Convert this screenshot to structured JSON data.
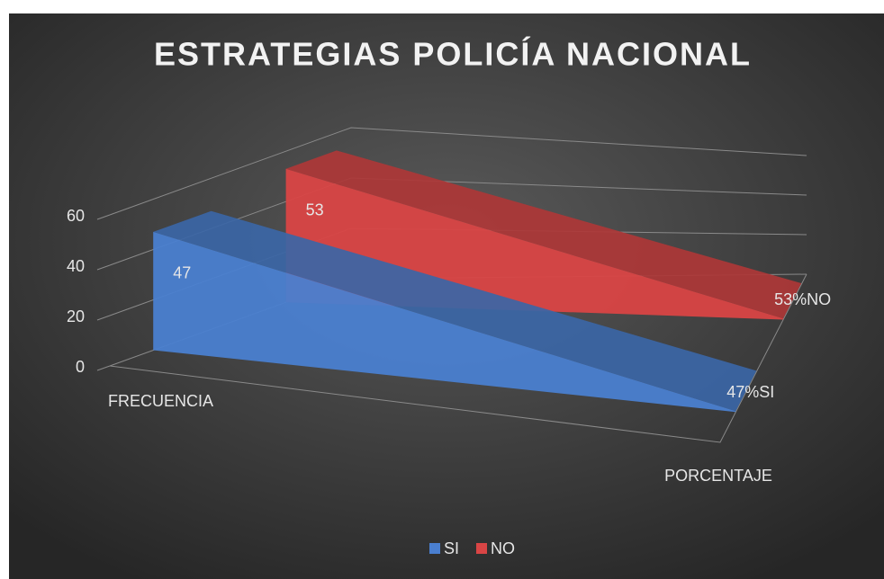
{
  "chart_data": {
    "type": "line3d",
    "title": "ESTRATEGIAS POLICÍA NACIONAL",
    "categories": [
      "FRECUENCIA",
      "PORCENTAJE"
    ],
    "series": [
      {
        "name": "SI",
        "color": "#4a7fd0",
        "values": [
          47,
          0.47
        ],
        "value_labels": [
          "47",
          "47%SI"
        ]
      },
      {
        "name": "NO",
        "color": "#d94545",
        "values": [
          53,
          0.53
        ],
        "value_labels": [
          "53",
          "53%NO"
        ]
      }
    ],
    "ylim": [
      0,
      60
    ],
    "yticks": [
      0,
      20,
      40,
      60
    ],
    "grid": true,
    "legend": "bottom"
  }
}
